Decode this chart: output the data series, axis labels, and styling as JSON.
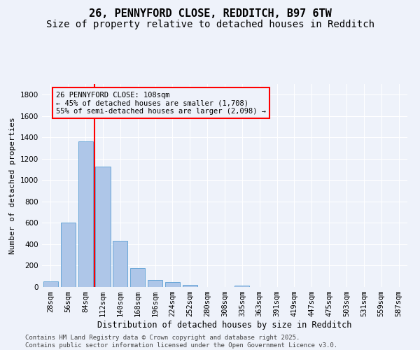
{
  "title": "26, PENNYFORD CLOSE, REDDITCH, B97 6TW",
  "subtitle": "Size of property relative to detached houses in Redditch",
  "xlabel": "Distribution of detached houses by size in Redditch",
  "ylabel": "Number of detached properties",
  "categories": [
    "28sqm",
    "56sqm",
    "84sqm",
    "112sqm",
    "140sqm",
    "168sqm",
    "196sqm",
    "224sqm",
    "252sqm",
    "280sqm",
    "308sqm",
    "335sqm",
    "363sqm",
    "391sqm",
    "419sqm",
    "447sqm",
    "475sqm",
    "503sqm",
    "531sqm",
    "559sqm",
    "587sqm"
  ],
  "values": [
    55,
    605,
    1365,
    1130,
    430,
    175,
    65,
    45,
    20,
    0,
    0,
    15,
    0,
    0,
    0,
    0,
    0,
    0,
    0,
    0,
    0
  ],
  "bar_color": "#aec6e8",
  "bar_edge_color": "#5a9fd4",
  "background_color": "#eef2fa",
  "grid_color": "#ffffff",
  "vline_color": "red",
  "vline_x_idx": 2.5,
  "annotation_text": "26 PENNYFORD CLOSE: 108sqm\n← 45% of detached houses are smaller (1,708)\n55% of semi-detached houses are larger (2,098) →",
  "annotation_box_color": "red",
  "annotation_bg": "#eef2fa",
  "ylim": [
    0,
    1900
  ],
  "yticks": [
    0,
    200,
    400,
    600,
    800,
    1000,
    1200,
    1400,
    1600,
    1800
  ],
  "footer": "Contains HM Land Registry data © Crown copyright and database right 2025.\nContains public sector information licensed under the Open Government Licence v3.0.",
  "title_fontsize": 11,
  "subtitle_fontsize": 10,
  "xlabel_fontsize": 8.5,
  "ylabel_fontsize": 8,
  "tick_fontsize": 7.5,
  "annotation_fontsize": 7.5,
  "footer_fontsize": 6.5
}
